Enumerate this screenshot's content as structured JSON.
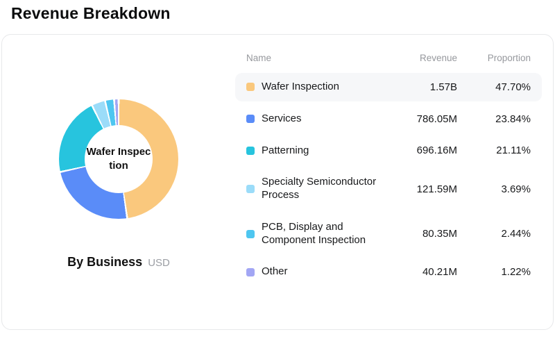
{
  "page": {
    "title": "Revenue Breakdown"
  },
  "chart": {
    "center_label": "Wafer Inspection",
    "caption": "By Business",
    "unit": "USD"
  },
  "table": {
    "headers": [
      "Name",
      "Revenue",
      "Proportion"
    ],
    "rows": [
      {
        "name": "Wafer Inspection",
        "revenue": "1.57B",
        "proportion": "47.70%",
        "highlighted": true
      },
      {
        "name": "Services",
        "revenue": "786.05M",
        "proportion": "23.84%",
        "highlighted": false
      },
      {
        "name": "Patterning",
        "revenue": "696.16M",
        "proportion": "21.11%",
        "highlighted": false
      },
      {
        "name": "Specialty Semiconductor Process",
        "revenue": "121.59M",
        "proportion": "3.69%",
        "highlighted": false
      },
      {
        "name": "PCB, Display and Component Inspection",
        "revenue": "80.35M",
        "proportion": "2.44%",
        "highlighted": false
      },
      {
        "name": "Other",
        "revenue": "40.21M",
        "proportion": "1.22%",
        "highlighted": false
      }
    ]
  },
  "chart_data": {
    "type": "pie",
    "donut": true,
    "title": "Revenue Breakdown",
    "center_label": "Wafer Inspection",
    "unit": "USD",
    "categories": [
      "Wafer Inspection",
      "Services",
      "Patterning",
      "Specialty Semiconductor Process",
      "PCB, Display and Component Inspection",
      "Other"
    ],
    "values": [
      47.7,
      23.84,
      21.11,
      3.69,
      2.44,
      1.22
    ],
    "revenue_labels": [
      "1.57B",
      "786.05M",
      "696.16M",
      "121.59M",
      "80.35M",
      "40.21M"
    ],
    "colors": [
      "#FAC87D",
      "#5A8CF8",
      "#27C4DE",
      "#9BDCF9",
      "#4EC6F0",
      "#A2A6F4"
    ],
    "highlight_row_color": "#f6f7f9",
    "start_angle_deg": 0,
    "clockwise": true,
    "legend_position": "table-right"
  }
}
